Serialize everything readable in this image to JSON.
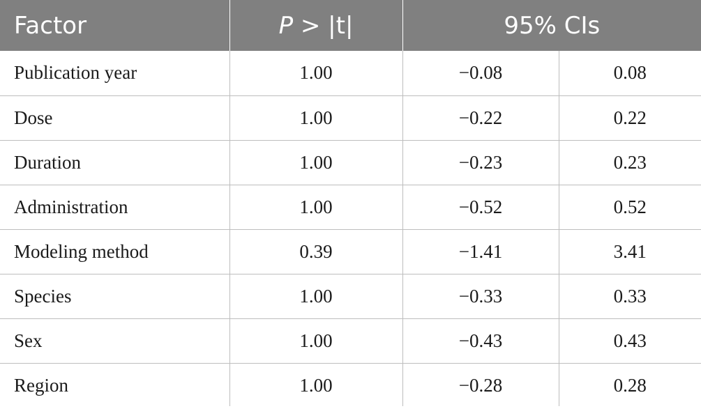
{
  "table": {
    "headers": {
      "factor": "Factor",
      "p_prefix": "P",
      "p_suffix": " > |t|",
      "ci": "95% CIs"
    },
    "rows": [
      {
        "factor": "Publication year",
        "p": "1.00",
        "ci_low": "−0.08",
        "ci_high": "0.08"
      },
      {
        "factor": "Dose",
        "p": "1.00",
        "ci_low": "−0.22",
        "ci_high": "0.22"
      },
      {
        "factor": "Duration",
        "p": "1.00",
        "ci_low": "−0.23",
        "ci_high": "0.23"
      },
      {
        "factor": "Administration",
        "p": "1.00",
        "ci_low": "−0.52",
        "ci_high": "0.52"
      },
      {
        "factor": "Modeling method",
        "p": "0.39",
        "ci_low": "−1.41",
        "ci_high": "3.41"
      },
      {
        "factor": "Species",
        "p": "1.00",
        "ci_low": "−0.33",
        "ci_high": "0.33"
      },
      {
        "factor": "Sex",
        "p": "1.00",
        "ci_low": "−0.43",
        "ci_high": "0.43"
      },
      {
        "factor": "Region",
        "p": "1.00",
        "ci_low": "−0.28",
        "ci_high": "0.28"
      }
    ]
  },
  "colors": {
    "header_bg": "#808080",
    "header_text": "#ffffff",
    "grid_line": "#bdbdbd",
    "body_text": "#1a1a1a"
  }
}
